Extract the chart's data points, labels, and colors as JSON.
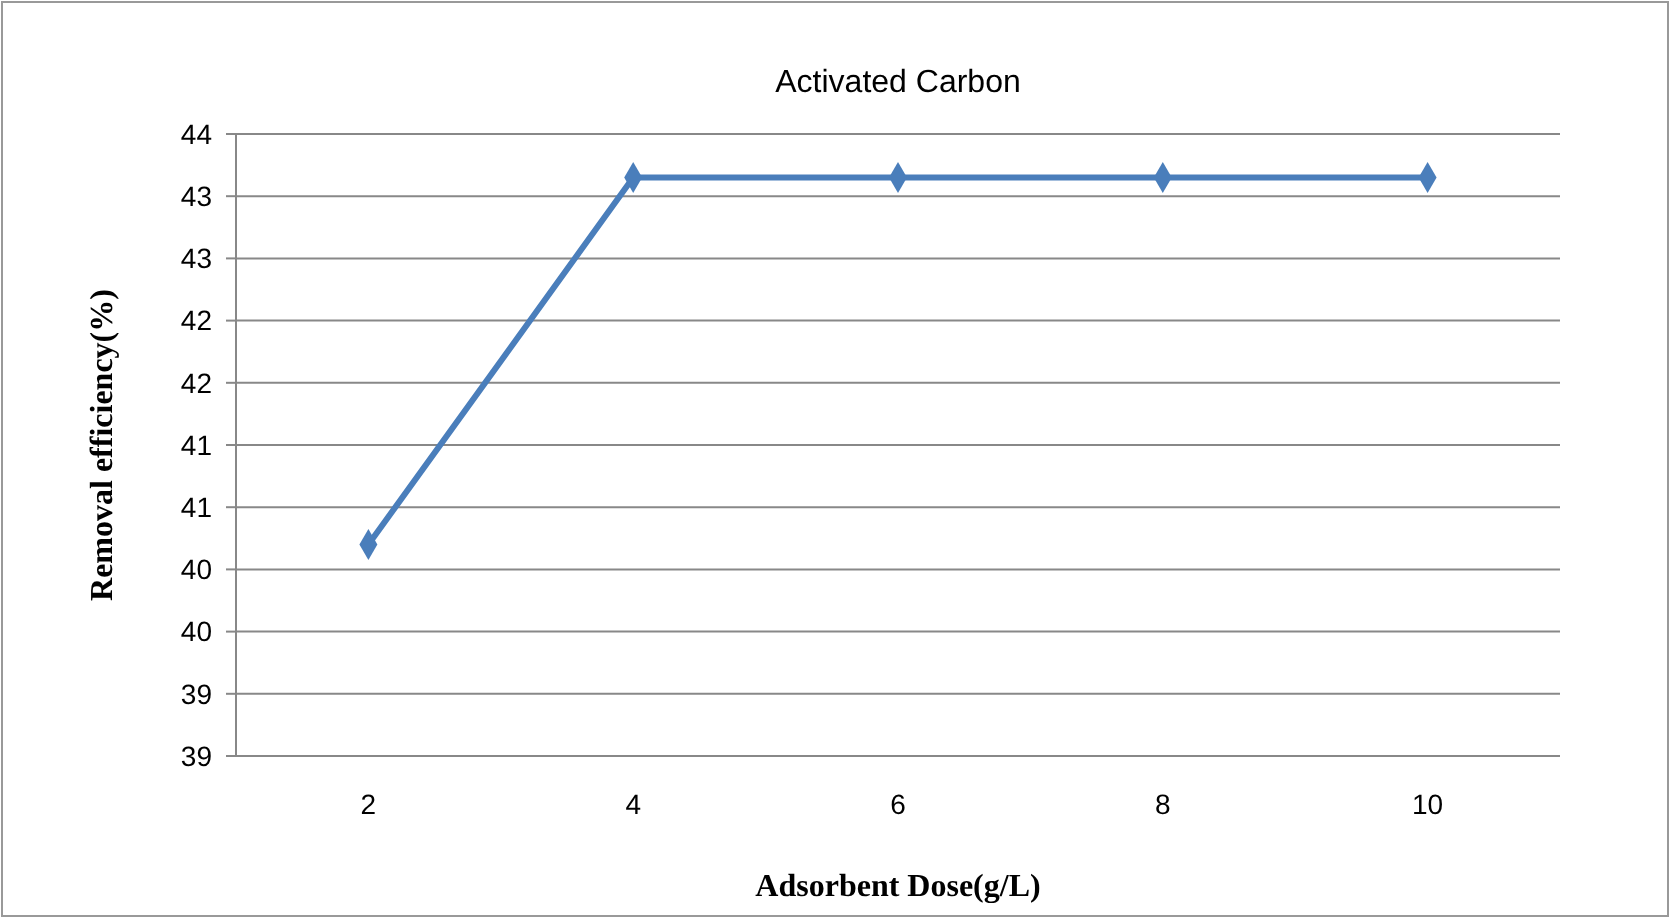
{
  "chart_data": {
    "type": "line",
    "title": "Activated Carbon",
    "xlabel": "Adsorbent Dose(g/L)",
    "ylabel": "Removal  efficiency(%)",
    "categories": [
      "2",
      "4",
      "6",
      "8",
      "10"
    ],
    "series": [
      {
        "color": "#4a7ebb",
        "values": [
          40.7,
          43.65,
          43.65,
          43.65,
          43.65
        ]
      }
    ],
    "ylim": [
      39,
      44
    ],
    "yticks": [
      39,
      {
        "value": 39.5,
        "label": "39"
      },
      40,
      {
        "value": 40.5,
        "label": "40"
      },
      41,
      {
        "value": 41.5,
        "label": "41"
      },
      42,
      {
        "value": 42.5,
        "label": "42"
      },
      43,
      {
        "value": 43.5,
        "label": "43"
      },
      44
    ],
    "grid": "y",
    "marker": "diamond",
    "line_style": "solid"
  }
}
